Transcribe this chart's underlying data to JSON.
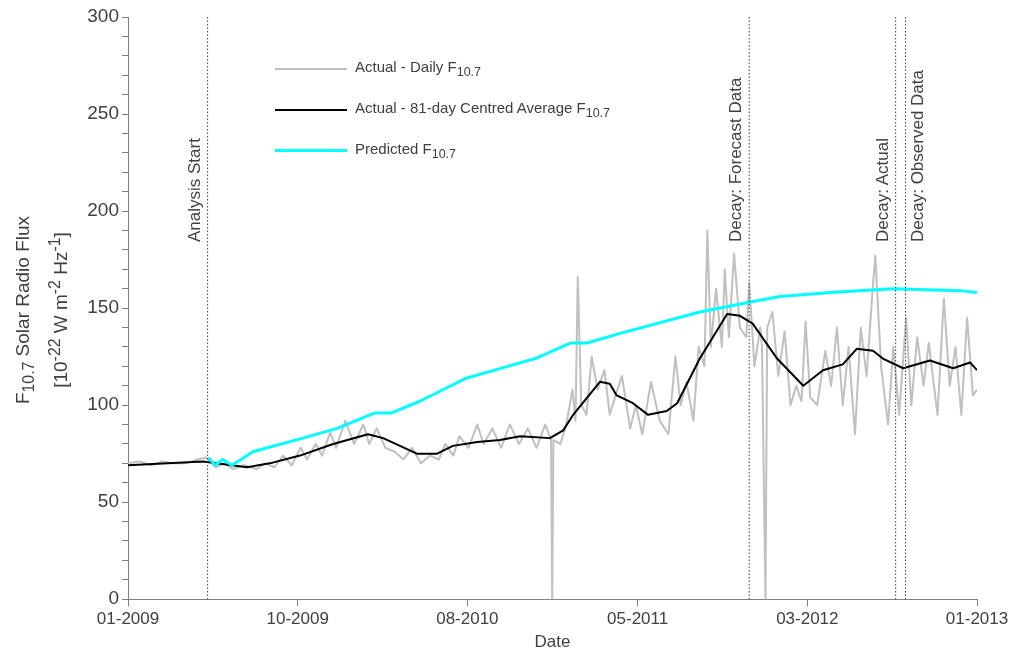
{
  "chart_data": {
    "type": "line",
    "xlabel": "Date",
    "ylabel": "F$_{10.7}$ Solar Radio Flux\n[10$^{-22}$ W m$^{-2}$ Hz$^{-1}$]",
    "xlim": [
      "2009-01-01",
      "2013-01-01"
    ],
    "xticks": [
      {
        "value": "2009-01-01",
        "label": "01-2009"
      },
      {
        "value": "2009-10-20",
        "label": "10-2009"
      },
      {
        "value": "2010-08-08",
        "label": "08-2010"
      },
      {
        "value": "2011-05-28",
        "label": "05-2011"
      },
      {
        "value": "2012-03-15",
        "label": "03-2012"
      },
      {
        "value": "2013-01-01",
        "label": "01-2013"
      }
    ],
    "ylim": [
      0,
      300
    ],
    "yticks": [
      0,
      {
        "value": 10,
        "label": null
      },
      {
        "value": 20,
        "label": null
      },
      {
        "value": 30,
        "label": null
      },
      {
        "value": 40,
        "label": null
      },
      50,
      {
        "value": 60,
        "label": null
      },
      {
        "value": 70,
        "label": null
      },
      {
        "value": 80,
        "label": null
      },
      {
        "value": 90,
        "label": null
      },
      100,
      {
        "value": 110,
        "label": null
      },
      {
        "value": 120,
        "label": null
      },
      {
        "value": 130,
        "label": null
      },
      {
        "value": 140,
        "label": null
      },
      150,
      {
        "value": 160,
        "label": null
      },
      {
        "value": 170,
        "label": null
      },
      {
        "value": 180,
        "label": null
      },
      {
        "value": 190,
        "label": null
      },
      200,
      {
        "value": 210,
        "label": null
      },
      {
        "value": 220,
        "label": null
      },
      {
        "value": 230,
        "label": null
      },
      {
        "value": 240,
        "label": null
      },
      250,
      {
        "value": 260,
        "label": null
      },
      {
        "value": 270,
        "label": null
      },
      {
        "value": 280,
        "label": null
      },
      {
        "value": 290,
        "label": null
      },
      300
    ],
    "grid": false,
    "legend": "top left",
    "marker": "none",
    "line_style": "solid",
    "ref_lines": [
      {
        "axis": "x",
        "value": "2009-05-18",
        "label": "Analysis Start",
        "color": "#404040",
        "line_style": "dotted"
      },
      {
        "axis": "x",
        "value": "2011-12-06",
        "label": "Decay: Forecast Data",
        "color": "#404040",
        "line_style": "dotted"
      },
      {
        "axis": "x",
        "value": "2012-08-14",
        "label": "Decay: Actual",
        "color": "#404040",
        "line_style": "dotted"
      },
      {
        "axis": "x",
        "value": "2012-08-31",
        "label": "Decay: Observed Data",
        "color": "#404040",
        "line_style": "dotted"
      }
    ],
    "series": [
      {
        "name": "Actual - Daily F$_{10.7}$",
        "color": "#c0c0c0",
        "x": [
          "2009-01-01",
          "2009-01-20",
          "2009-02-10",
          "2009-03-01",
          "2009-03-20",
          "2009-04-10",
          "2009-05-01",
          "2009-05-15",
          "2009-06-01",
          "2009-06-15",
          "2009-07-01",
          "2009-07-20",
          "2009-08-10",
          "2009-08-25",
          "2009-09-10",
          "2009-09-25",
          "2009-10-10",
          "2009-10-25",
          "2009-11-05",
          "2009-11-20",
          "2009-12-01",
          "2009-12-15",
          "2009-12-25",
          "2010-01-10",
          "2010-01-25",
          "2010-02-10",
          "2010-02-20",
          "2010-03-05",
          "2010-03-20",
          "2010-04-05",
          "2010-04-20",
          "2010-05-05",
          "2010-05-20",
          "2010-06-05",
          "2010-06-20",
          "2010-07-01",
          "2010-07-15",
          "2010-07-25",
          "2010-08-10",
          "2010-08-25",
          "2010-09-05",
          "2010-09-20",
          "2010-10-05",
          "2010-10-20",
          "2010-11-05",
          "2010-11-20",
          "2010-12-05",
          "2010-12-20",
          "2010-12-30",
          "2011-01-01",
          "2011-01-03",
          "2011-01-15",
          "2011-01-25",
          "2011-02-05",
          "2011-02-10",
          "2011-02-14",
          "2011-02-20",
          "2011-03-01",
          "2011-03-10",
          "2011-03-20",
          "2011-04-01",
          "2011-04-10",
          "2011-04-20",
          "2011-05-01",
          "2011-05-15",
          "2011-05-25",
          "2011-06-05",
          "2011-06-20",
          "2011-07-05",
          "2011-07-20",
          "2011-08-01",
          "2011-08-10",
          "2011-08-20",
          "2011-09-01",
          "2011-09-10",
          "2011-09-20",
          "2011-09-25",
          "2011-10-01",
          "2011-10-10",
          "2011-10-20",
          "2011-10-25",
          "2011-11-01",
          "2011-11-10",
          "2011-11-20",
          "2011-12-01",
          "2011-12-06",
          "2011-12-15",
          "2011-12-25",
          "2011-12-28",
          "2012-01-03",
          "2012-01-06",
          "2012-01-15",
          "2012-01-25",
          "2012-02-05",
          "2012-02-15",
          "2012-02-25",
          "2012-03-05",
          "2012-03-12",
          "2012-03-20",
          "2012-04-01",
          "2012-04-15",
          "2012-04-25",
          "2012-05-05",
          "2012-05-15",
          "2012-05-25",
          "2012-06-05",
          "2012-06-15",
          "2012-06-25",
          "2012-07-05",
          "2012-07-10",
          "2012-07-20",
          "2012-08-01",
          "2012-08-10",
          "2012-08-20",
          "2012-09-01",
          "2012-09-10",
          "2012-09-20",
          "2012-10-01",
          "2012-10-10",
          "2012-10-25",
          "2012-11-05",
          "2012-11-15",
          "2012-11-25",
          "2012-12-05",
          "2012-12-15",
          "2012-12-25",
          "2013-01-01"
        ],
        "values": [
          70,
          71,
          69,
          71,
          70,
          70,
          72,
          73,
          68,
          70,
          67,
          69,
          67,
          70,
          68,
          74,
          69,
          78,
          72,
          80,
          74,
          86,
          78,
          92,
          80,
          90,
          80,
          88,
          78,
          76,
          72,
          78,
          70,
          74,
          72,
          80,
          74,
          84,
          78,
          90,
          80,
          88,
          78,
          90,
          80,
          88,
          78,
          90,
          82,
          0,
          82,
          80,
          90,
          108,
          92,
          166,
          100,
          95,
          125,
          108,
          118,
          95,
          105,
          115,
          88,
          100,
          85,
          112,
          92,
          85,
          125,
          100,
          112,
          92,
          130,
          120,
          190,
          130,
          160,
          130,
          170,
          135,
          178,
          140,
          135,
          163,
          120,
          140,
          130,
          0,
          140,
          148,
          115,
          138,
          100,
          110,
          102,
          143,
          104,
          100,
          128,
          110,
          140,
          100,
          130,
          85,
          140,
          115,
          158,
          177,
          120,
          90,
          130,
          95,
          145,
          100,
          135,
          110,
          132,
          95,
          155,
          110,
          130,
          95,
          145,
          105,
          108
        ]
      },
      {
        "name": "Actual - 81-day Centred Average F$_{10.7}$",
        "color": "#000000",
        "x": [
          "2009-01-01",
          "2009-05-10",
          "2009-07-25",
          "2009-09-02",
          "2009-10-24",
          "2009-12-20",
          "2010-02-18",
          "2010-03-16",
          "2010-05-13",
          "2010-06-17",
          "2010-07-14",
          "2010-08-25",
          "2010-10-03",
          "2010-11-07",
          "2010-12-28",
          "2011-01-20",
          "2011-02-06",
          "2011-03-24",
          "2011-04-10",
          "2011-04-22",
          "2011-05-20",
          "2011-06-15",
          "2011-07-17",
          "2011-08-04",
          "2011-08-21",
          "2011-09-12",
          "2011-10-29",
          "2011-11-20",
          "2011-12-12",
          "2012-01-23",
          "2012-03-08",
          "2012-04-11",
          "2012-05-15",
          "2012-06-08",
          "2012-07-06",
          "2012-07-23",
          "2012-08-27",
          "2012-10-12",
          "2012-11-21",
          "2012-12-20",
          "2013-01-01"
        ],
        "values": [
          69,
          71,
          68,
          70,
          74,
          80,
          85,
          83,
          75,
          75,
          79,
          81,
          82,
          84,
          83,
          87,
          95,
          112,
          111,
          105,
          101,
          95,
          97,
          101,
          111,
          124,
          147,
          146,
          142,
          124,
          110,
          118,
          121,
          129,
          128,
          124,
          119,
          123,
          119,
          122,
          118
        ]
      },
      {
        "name": "Predicted F$_{10.7}$",
        "color": "#00ffff",
        "x": [
          "2009-05-19",
          "2009-05-31",
          "2009-06-13",
          "2009-06-29",
          "2009-08-04",
          "2009-10-29",
          "2009-12-27",
          "2010-03-02",
          "2010-03-31",
          "2010-05-18",
          "2010-08-07",
          "2010-12-03",
          "2011-02-01",
          "2011-03-02",
          "2011-04-28",
          "2011-09-12",
          "2011-12-06",
          "2012-01-28",
          "2012-04-23",
          "2012-08-09",
          "2012-12-03",
          "2013-01-01"
        ],
        "values": [
          73,
          69,
          72,
          69,
          76,
          83,
          88,
          96,
          96,
          102,
          114,
          124,
          132,
          132,
          137,
          148,
          153,
          156,
          158,
          160,
          159,
          158
        ]
      }
    ]
  }
}
